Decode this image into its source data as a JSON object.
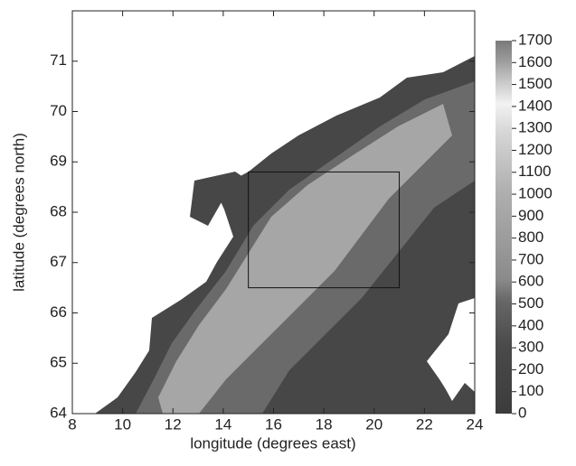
{
  "chart_data": {
    "type": "map",
    "xlabel": "longitude (degrees east)",
    "ylabel": "latitude (degrees north)",
    "xlim": [
      8,
      24
    ],
    "xticks": [
      8,
      10,
      12,
      14,
      16,
      18,
      20,
      22,
      24
    ],
    "ylim": [
      64,
      72
    ],
    "yticks": [
      64,
      65,
      66,
      67,
      68,
      69,
      70,
      71
    ],
    "box": {
      "lon": [
        15,
        21
      ],
      "lat": [
        66.5,
        68.8
      ]
    },
    "colorbar": {
      "lim": [
        0,
        1700
      ],
      "ticks": [
        0,
        100,
        200,
        300,
        400,
        500,
        600,
        700,
        800,
        900,
        1000,
        1100,
        1200,
        1300,
        1400,
        1500,
        1600,
        1700
      ]
    }
  }
}
